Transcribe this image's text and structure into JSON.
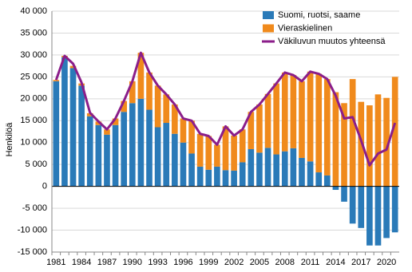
{
  "chart_data": {
    "type": "bar-line",
    "y_label": "Henkilöä",
    "categories": [
      "1981",
      null,
      null,
      "1984",
      null,
      null,
      "1987",
      null,
      null,
      "1990",
      null,
      null,
      "1993",
      null,
      null,
      "1996",
      null,
      null,
      "1999",
      null,
      null,
      "2002",
      null,
      null,
      "2005",
      null,
      null,
      "2008",
      null,
      null,
      "2011",
      null,
      null,
      "2014",
      null,
      null,
      "2017",
      null,
      null,
      "2020",
      null
    ],
    "series": [
      {
        "name": "Suomi, ruotsi, saame",
        "color": "#2a7ab8",
        "kind": "bar",
        "values": [
          24000,
          29500,
          27000,
          23000,
          16000,
          14000,
          11800,
          14000,
          17000,
          19000,
          20000,
          17500,
          13500,
          14500,
          12000,
          10000,
          7500,
          4500,
          3800,
          4500,
          3700,
          3600,
          5500,
          8500,
          7700,
          8800,
          7300,
          8000,
          8700,
          6500,
          5700,
          3200,
          2500,
          -800,
          -3500,
          -8500,
          -9500,
          -13500,
          -13500,
          -11800,
          -10500
        ]
      },
      {
        "name": "Vieraskielinen",
        "color": "#f08a1c",
        "kind": "bar",
        "values": [
          300,
          300,
          500,
          500,
          700,
          800,
          1200,
          1500,
          2500,
          5000,
          10500,
          8500,
          9500,
          6500,
          6700,
          5500,
          7500,
          7500,
          7700,
          5000,
          10000,
          8000,
          7500,
          8500,
          11000,
          12300,
          16200,
          18000,
          16700,
          17500,
          20500,
          22500,
          22000,
          21500,
          19000,
          24500,
          19300,
          18500,
          21000,
          20200,
          25000
        ]
      },
      {
        "name": "Väkiluvun muutos yhteensä",
        "color": "#8b1e8a",
        "kind": "line",
        "values": [
          24300,
          29800,
          28000,
          23700,
          16800,
          14800,
          13000,
          15500,
          19500,
          24000,
          30500,
          26000,
          23000,
          21000,
          18700,
          15500,
          15000,
          12000,
          11500,
          9500,
          13700,
          11600,
          13000,
          17000,
          18700,
          21100,
          23500,
          26000,
          25400,
          24000,
          26200,
          25700,
          24500,
          20700,
          15500,
          15800,
          10500,
          4800,
          7500,
          8400,
          14500
        ]
      }
    ],
    "ylim": [
      -15000,
      40000
    ],
    "yticks": [
      {
        "value": -15000,
        "label": "-15 000"
      },
      {
        "value": -10000,
        "label": "-10 000"
      },
      {
        "value": -5000,
        "label": "-5 000"
      },
      0,
      {
        "value": 5000,
        "label": "5 000"
      },
      {
        "value": 10000,
        "label": "10 000"
      },
      {
        "value": 15000,
        "label": "15 000"
      },
      {
        "value": 20000,
        "label": "20 000"
      },
      {
        "value": 25000,
        "label": "25 000"
      },
      {
        "value": 30000,
        "label": "30 000"
      },
      {
        "value": 35000,
        "label": "35 000"
      },
      {
        "value": 40000,
        "label": "40 000"
      }
    ],
    "grid": true,
    "legend": "top-right"
  }
}
